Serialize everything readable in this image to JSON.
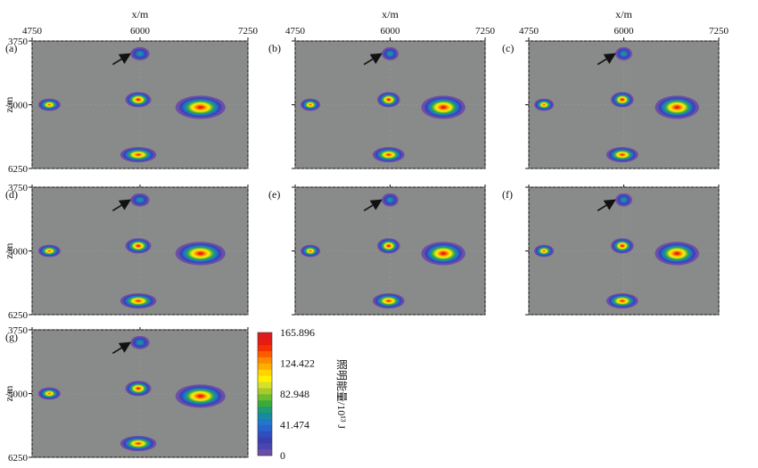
{
  "chart_data": {
    "type": "heatmap",
    "axes": {
      "x_label": "x/m",
      "z_label": "z/m",
      "x_ticks": [
        4750,
        6000,
        7250
      ],
      "z_ticks": [
        3750,
        5000,
        6250
      ],
      "x_range": [
        4750,
        7250
      ],
      "z_range": [
        3750,
        6250
      ],
      "grid": true
    },
    "colorbar": {
      "title": "照明能量/10¹³ J",
      "min": 0,
      "max": 165.896,
      "ticks": [
        165.896,
        124.422,
        82.948,
        41.474,
        0
      ],
      "colors": [
        "#6b4ea8",
        "#4a46b0",
        "#3a3fb0",
        "#2e4fc0",
        "#2a63cc",
        "#1f78c8",
        "#178aa0",
        "#1f9b70",
        "#3aaa3a",
        "#6dbb2e",
        "#a7cc2a",
        "#d8df2a",
        "#fff200",
        "#ffd400",
        "#ffae00",
        "#ff8a00",
        "#ff5a00",
        "#f23000",
        "#e51b14",
        "#e01b1b"
      ]
    },
    "colors": {
      "background": "#898a8a",
      "arrow": "#111111"
    },
    "panels": [
      {
        "label": "(a)",
        "show_x_ticks": true,
        "show_x_label": true,
        "show_z_ticks": true,
        "show_z_label": true
      },
      {
        "label": "(b)",
        "show_x_ticks": true,
        "show_x_label": true,
        "show_z_ticks": false,
        "show_z_label": false
      },
      {
        "label": "(c)",
        "show_x_ticks": true,
        "show_x_label": true,
        "show_z_ticks": false,
        "show_z_label": false
      },
      {
        "label": "(d)",
        "show_x_ticks": false,
        "show_x_label": false,
        "show_z_ticks": true,
        "show_z_label": true
      },
      {
        "label": "(e)",
        "show_x_ticks": false,
        "show_x_label": false,
        "show_z_ticks": false,
        "show_z_label": false
      },
      {
        "label": "(f)",
        "show_x_ticks": false,
        "show_x_label": false,
        "show_z_ticks": false,
        "show_z_label": false
      },
      {
        "label": "(g)",
        "show_x_ticks": false,
        "show_x_label": false,
        "show_z_ticks": true,
        "show_z_label": true
      }
    ],
    "anomalies": [
      {
        "x": 6000,
        "z": 4000,
        "rx": 110,
        "rz": 130,
        "peak": 70,
        "arrow": true
      },
      {
        "x": 4950,
        "z": 5000,
        "rx": 130,
        "rz": 120,
        "peak": 150,
        "arrow": false
      },
      {
        "x": 5980,
        "z": 4900,
        "rx": 150,
        "rz": 150,
        "peak": 165,
        "arrow": false
      },
      {
        "x": 6700,
        "z": 5050,
        "rx": 290,
        "rz": 230,
        "peak": 165.896,
        "arrow": false
      },
      {
        "x": 5980,
        "z": 5980,
        "rx": 210,
        "rz": 150,
        "peak": 160,
        "arrow": false
      }
    ]
  }
}
